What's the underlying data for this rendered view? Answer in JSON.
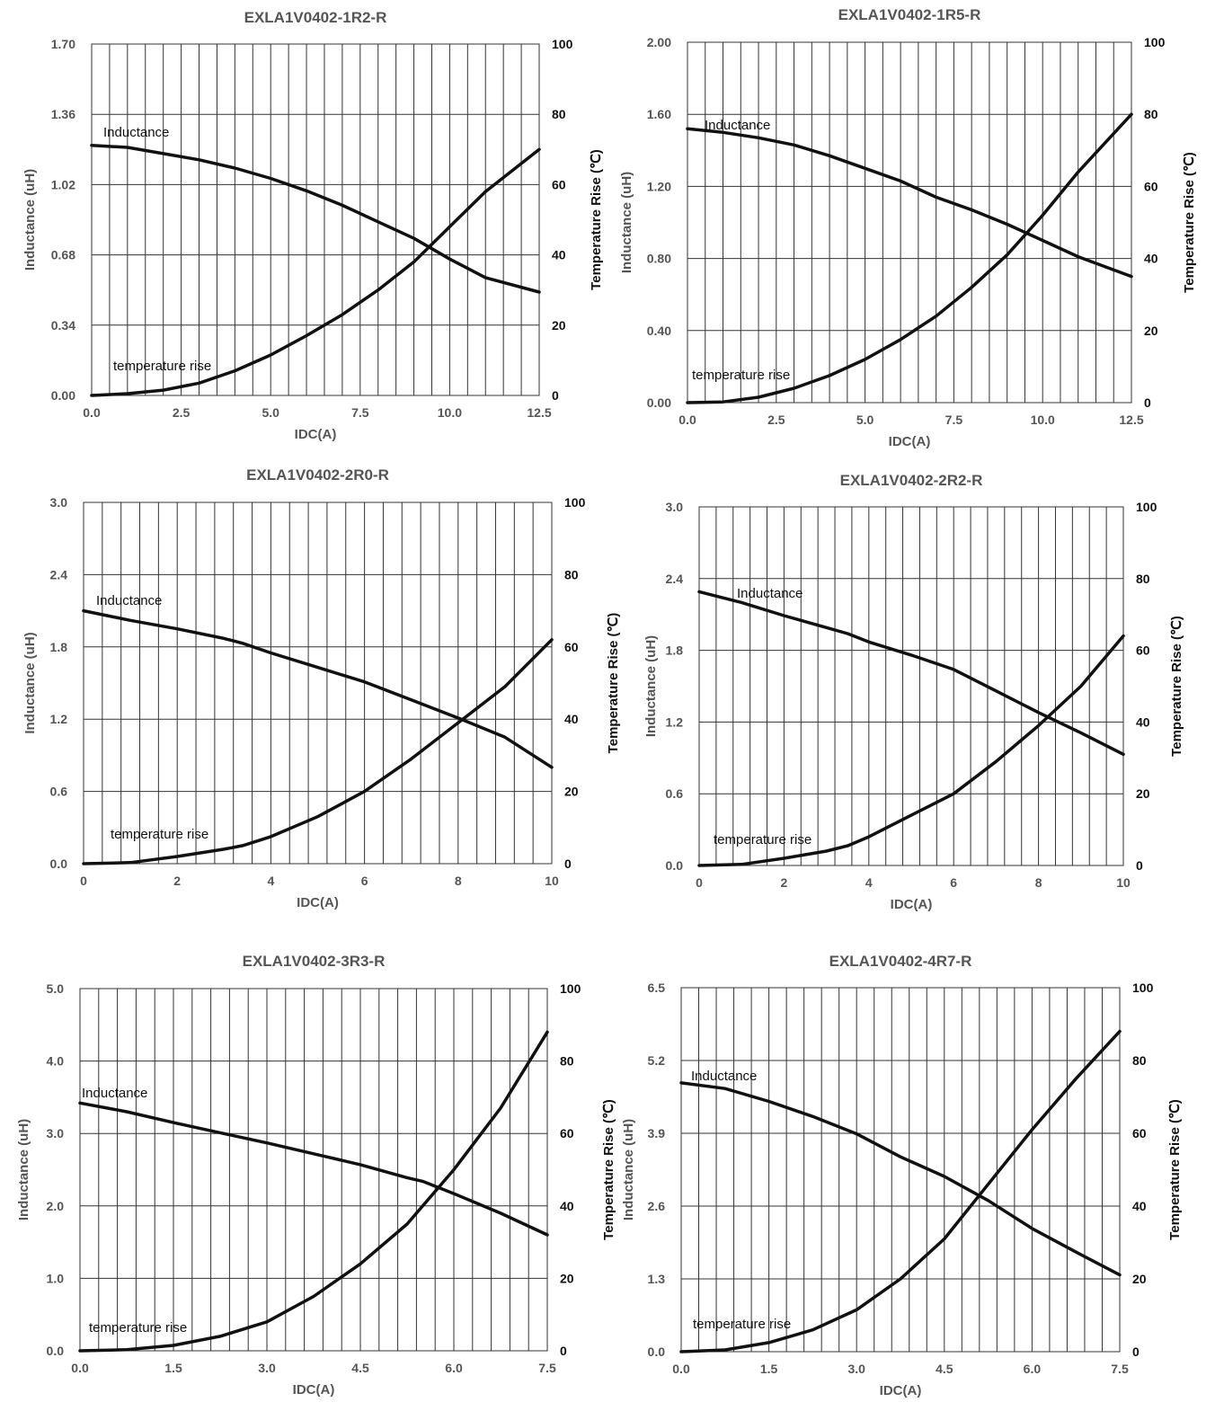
{
  "chart_data": [
    {
      "type": "line",
      "title": "EXLA1V0402-1R2-R",
      "xlabel": "IDC(A)",
      "ylabel": "Inductance   (uH)",
      "y2label": "Temperature Rise (℃)",
      "xlim": [
        0,
        12.5
      ],
      "ylim": [
        0,
        1.7
      ],
      "y2lim": [
        0,
        100
      ],
      "xticks": [
        "0.0",
        "2.5",
        "5.0",
        "7.5",
        "10.0",
        "12.5"
      ],
      "yticks": [
        "0.00",
        "0.34",
        "0.68",
        "1.02",
        "1.36",
        "1.70"
      ],
      "y2ticks": [
        "0",
        "20",
        "40",
        "60",
        "80",
        "100"
      ],
      "vgrid_step": 0.5,
      "grid": true,
      "annotations": {
        "inductance": "Inductance",
        "temperature": "temperature rise"
      },
      "series": [
        {
          "name": "Inductance",
          "axis": "left",
          "x": [
            0,
            1,
            2,
            3,
            4,
            5,
            6,
            7,
            8,
            9,
            10,
            11,
            12.5
          ],
          "y": [
            1.21,
            1.2,
            1.17,
            1.14,
            1.1,
            1.05,
            0.99,
            0.92,
            0.84,
            0.76,
            0.66,
            0.57,
            0.5
          ]
        },
        {
          "name": "temperature rise",
          "axis": "right",
          "x": [
            0,
            1,
            2,
            3,
            4,
            5,
            6,
            7,
            8,
            9,
            10,
            11,
            12.5
          ],
          "y": [
            0,
            0.5,
            1.5,
            3.5,
            7,
            11.5,
            17,
            23,
            30,
            38,
            48,
            58,
            70
          ]
        }
      ]
    },
    {
      "type": "line",
      "title": "EXLA1V0402-1R5-R",
      "xlabel": "IDC(A)",
      "ylabel": "Inductance   (uH)",
      "y2label": "Temperature Rise (℃)",
      "xlim": [
        0,
        12.5
      ],
      "ylim": [
        0,
        2.0
      ],
      "y2lim": [
        0,
        100
      ],
      "xticks": [
        "0.0",
        "2.5",
        "5.0",
        "7.5",
        "10.0",
        "12.5"
      ],
      "yticks": [
        "0.00",
        "0.40",
        "0.80",
        "1.20",
        "1.60",
        "2.00"
      ],
      "y2ticks": [
        "0",
        "20",
        "40",
        "60",
        "80",
        "100"
      ],
      "vgrid_step": 0.5,
      "grid": true,
      "annotations": {
        "inductance": "Inductance",
        "temperature": "temperature rise"
      },
      "series": [
        {
          "name": "Inductance",
          "axis": "left",
          "x": [
            0,
            1,
            2,
            3,
            4,
            5,
            6,
            7,
            8,
            9,
            10,
            11,
            12.5
          ],
          "y": [
            1.52,
            1.5,
            1.47,
            1.43,
            1.37,
            1.3,
            1.23,
            1.14,
            1.07,
            0.99,
            0.9,
            0.81,
            0.7
          ]
        },
        {
          "name": "temperature rise",
          "axis": "right",
          "x": [
            0,
            1,
            2,
            3,
            4,
            5,
            6,
            7,
            8,
            9,
            10,
            11,
            12.5
          ],
          "y": [
            0,
            0.2,
            1.5,
            4,
            7.5,
            12,
            17.5,
            24,
            32,
            41,
            52,
            64,
            80
          ]
        }
      ]
    },
    {
      "type": "line",
      "title": "EXLA1V0402-2R0-R",
      "xlabel": "IDC(A)",
      "ylabel": "Inductance   (uH)",
      "y2label": "Temperature Rise (℃)",
      "xlim": [
        0,
        10
      ],
      "ylim": [
        0,
        3.0
      ],
      "y2lim": [
        0,
        100
      ],
      "xticks": [
        "0",
        "2",
        "4",
        "6",
        "8",
        "10"
      ],
      "yticks": [
        "0.0",
        "0.6",
        "1.2",
        "1.8",
        "2.4",
        "3.0"
      ],
      "y2ticks": [
        "0",
        "20",
        "40",
        "60",
        "80",
        "100"
      ],
      "vgrid_step": 0.4,
      "grid": true,
      "annotations": {
        "inductance": "Inductance",
        "temperature": "temperature rise"
      },
      "series": [
        {
          "name": "Inductance",
          "axis": "left",
          "x": [
            0,
            1,
            2,
            3,
            3.4,
            4,
            5,
            6,
            7,
            8,
            9,
            10
          ],
          "y": [
            2.1,
            2.02,
            1.95,
            1.87,
            1.83,
            1.75,
            1.63,
            1.51,
            1.36,
            1.21,
            1.05,
            0.8
          ]
        },
        {
          "name": "temperature rise",
          "axis": "right",
          "x": [
            0,
            1,
            2,
            3,
            3.4,
            4,
            5,
            6,
            7,
            8,
            9,
            10
          ],
          "y": [
            0,
            0.3,
            2,
            4,
            5,
            7.5,
            13,
            20,
            29,
            39,
            49,
            62
          ]
        }
      ]
    },
    {
      "type": "line",
      "title": "EXLA1V0402-2R2-R",
      "xlabel": "IDC(A)",
      "ylabel": "Inductance   (uH)",
      "y2label": "Temperature Rise (℃)",
      "xlim": [
        0,
        10
      ],
      "ylim": [
        0,
        3.0
      ],
      "y2lim": [
        0,
        100
      ],
      "xticks": [
        "0",
        "2",
        "4",
        "6",
        "8",
        "10"
      ],
      "yticks": [
        "0.0",
        "0.6",
        "1.2",
        "1.8",
        "2.4",
        "3.0"
      ],
      "y2ticks": [
        "0",
        "20",
        "40",
        "60",
        "80",
        "100"
      ],
      "vgrid_step": 0.4,
      "grid": true,
      "annotations": {
        "inductance": "Inductance",
        "temperature": "temperature rise"
      },
      "series": [
        {
          "name": "Inductance",
          "axis": "left",
          "x": [
            0,
            1,
            2,
            3,
            3.5,
            4,
            5,
            6,
            7,
            8,
            9,
            10
          ],
          "y": [
            2.29,
            2.2,
            2.09,
            1.99,
            1.94,
            1.87,
            1.76,
            1.64,
            1.46,
            1.28,
            1.11,
            0.93
          ]
        },
        {
          "name": "temperature rise",
          "axis": "right",
          "x": [
            0,
            1,
            2,
            3,
            3.5,
            4,
            5,
            6,
            7,
            8,
            9,
            10
          ],
          "y": [
            0,
            0.3,
            2,
            4,
            5.5,
            8,
            14,
            20,
            29,
            39,
            50,
            64
          ]
        }
      ]
    },
    {
      "type": "line",
      "title": "EXLA1V0402-3R3-R",
      "xlabel": "IDC(A)",
      "ylabel": "Inductance   (uH)",
      "y2label": "Temperature Rise (℃)",
      "xlim": [
        0,
        7.5
      ],
      "ylim": [
        0,
        5.0
      ],
      "y2lim": [
        0,
        100
      ],
      "xticks": [
        "0.0",
        "1.5",
        "3.0",
        "4.5",
        "6.0",
        "7.5"
      ],
      "yticks": [
        "0.0",
        "1.0",
        "2.0",
        "3.0",
        "4.0",
        "5.0"
      ],
      "y2ticks": [
        "0",
        "20",
        "40",
        "60",
        "80",
        "100"
      ],
      "vgrid_step": 0.3,
      "grid": true,
      "annotations": {
        "inductance": "Inductance",
        "temperature": "temperature rise"
      },
      "series": [
        {
          "name": "Inductance",
          "axis": "left",
          "x": [
            0,
            0.75,
            1.5,
            2.25,
            3,
            3.75,
            4.5,
            5.25,
            5.5,
            6,
            6.75,
            7.5
          ],
          "y": [
            3.42,
            3.3,
            3.15,
            3.01,
            2.87,
            2.72,
            2.57,
            2.39,
            2.34,
            2.17,
            1.9,
            1.6
          ]
        },
        {
          "name": "temperature rise",
          "axis": "right",
          "x": [
            0,
            0.75,
            1.5,
            2.25,
            3,
            3.75,
            4.5,
            5.25,
            6,
            6.75,
            7.5
          ],
          "y": [
            0,
            0.3,
            1.5,
            4,
            8,
            15,
            24,
            35,
            50,
            67,
            88
          ]
        }
      ]
    },
    {
      "type": "line",
      "title": "EXLA1V0402-4R7-R",
      "xlabel": "IDC(A)",
      "ylabel": "Inductance   (uH)",
      "y2label": "Temperature Rise (℃)",
      "xlim": [
        0,
        7.5
      ],
      "ylim": [
        0,
        6.5
      ],
      "y2lim": [
        0,
        100
      ],
      "xticks": [
        "0.0",
        "1.5",
        "3.0",
        "4.5",
        "6.0",
        "7.5"
      ],
      "yticks": [
        "0.0",
        "1.3",
        "2.6",
        "3.9",
        "5.2",
        "6.5"
      ],
      "y2ticks": [
        "0",
        "20",
        "40",
        "60",
        "80",
        "100"
      ],
      "vgrid_step": 0.3,
      "grid": true,
      "annotations": {
        "inductance": "Inductance",
        "temperature": "temperature rise"
      },
      "series": [
        {
          "name": "Inductance",
          "axis": "left",
          "x": [
            0,
            0.75,
            1.5,
            2.25,
            3,
            3.75,
            4.5,
            5.25,
            6,
            6.75,
            7.5
          ],
          "y": [
            4.8,
            4.7,
            4.47,
            4.2,
            3.89,
            3.48,
            3.13,
            2.7,
            2.2,
            1.78,
            1.37
          ]
        },
        {
          "name": "temperature rise",
          "axis": "right",
          "x": [
            0,
            0.75,
            1.5,
            2.25,
            3,
            3.75,
            4.5,
            5.25,
            6,
            6.75,
            7.5
          ],
          "y": [
            0,
            0.5,
            2.5,
            6,
            11.5,
            20,
            31,
            46,
            61,
            75,
            88
          ]
        }
      ]
    }
  ]
}
